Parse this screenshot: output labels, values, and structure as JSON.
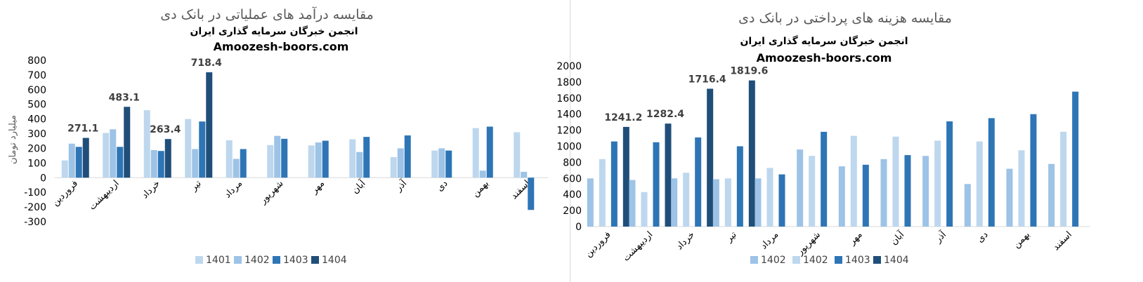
{
  "chart_data": [
    {
      "type": "bar",
      "title": "مقایسه درآمد های عملیاتی در بانک دی",
      "subtitle_lines": [
        "انجمن خبرگان سرمایه گذاری ایران",
        "Amoozesh-boors.com"
      ],
      "ylabel": "میلیارد تومان",
      "ylim": [
        -300,
        800
      ],
      "yticks": [
        -300,
        -200,
        -100,
        0,
        100,
        200,
        300,
        400,
        500,
        600,
        700,
        800
      ],
      "grid": false,
      "legend_position": "bottom",
      "categories": [
        "فروردین",
        "اردیبهشت",
        "خرداد",
        "تیر",
        "مرداد",
        "شهریور",
        "مهر",
        "آبان",
        "آذر",
        "دی",
        "بهمن",
        "اسفند"
      ],
      "series": [
        {
          "name": "1401",
          "color": "#bdd7ee",
          "values": [
            118,
            305,
            460,
            400,
            255,
            222,
            220,
            262,
            140,
            185,
            338,
            310
          ]
        },
        {
          "name": "1402",
          "color": "#9dc3e6",
          "values": [
            232,
            330,
            188,
            195,
            128,
            285,
            240,
            175,
            200,
            200,
            48,
            40
          ]
        },
        {
          "name": "1403",
          "color": "#2e75b6",
          "values": [
            210,
            210,
            182,
            383,
            195,
            265,
            252,
            278,
            288,
            185,
            348,
            -220
          ]
        },
        {
          "name": "1404",
          "color": "#1f4e79",
          "values": [
            271.1,
            483.1,
            263.4,
            718.4,
            null,
            null,
            null,
            null,
            null,
            null,
            null,
            null
          ]
        }
      ],
      "data_labels": [
        {
          "series": "1404",
          "category": "فروردین",
          "text": "271.1"
        },
        {
          "series": "1404",
          "category": "اردیبهشت",
          "text": "483.1"
        },
        {
          "series": "1404",
          "category": "خرداد",
          "text": "263.4"
        },
        {
          "series": "1404",
          "category": "تیر",
          "text": "718.4"
        }
      ]
    },
    {
      "type": "bar",
      "title": "مقایسه هزینه های پرداختی در بانک دی",
      "subtitle_lines": [
        "انجمن خبرگان سرمایه گذاری ایران",
        "Amoozesh-boors.com"
      ],
      "ylabel": "",
      "ylim": [
        0,
        2000
      ],
      "yticks": [
        0,
        200,
        400,
        600,
        800,
        1000,
        1200,
        1400,
        1600,
        1800,
        2000
      ],
      "grid": false,
      "legend_position": "bottom",
      "categories": [
        "فروردین",
        "اردیبهشت",
        "خرداد",
        "تیر",
        "مرداد",
        "شهریور",
        "مهر",
        "آبان",
        "آذر",
        "دی",
        "بهمن",
        "اسفند"
      ],
      "series": [
        {
          "name": "1402",
          "color": "#9dc3e6",
          "values": [
            600,
            580,
            600,
            590,
            600,
            960,
            750,
            840,
            880,
            530,
            720,
            780
          ]
        },
        {
          "name": "1402",
          "color": "#bdd7ee",
          "values": [
            840,
            430,
            670,
            600,
            730,
            880,
            1130,
            1120,
            1070,
            1060,
            950,
            1180
          ]
        },
        {
          "name": "1403",
          "color": "#2e75b6",
          "values": [
            1060,
            1050,
            1110,
            1000,
            650,
            1180,
            770,
            890,
            1310,
            1350,
            1400,
            1680
          ]
        },
        {
          "name": "1404",
          "color": "#1f4e79",
          "values": [
            1241.2,
            1282.4,
            1716.4,
            1819.6,
            null,
            null,
            null,
            null,
            null,
            null,
            null,
            null
          ]
        }
      ],
      "data_labels": [
        {
          "series": "1404",
          "category": "فروردین",
          "text": "1241.2"
        },
        {
          "series": "1404",
          "category": "اردیبهشت",
          "text": "1282.4"
        },
        {
          "series": "1404",
          "category": "خرداد",
          "text": "1716.4"
        },
        {
          "series": "1404",
          "category": "تیر",
          "text": "1819.6"
        }
      ]
    }
  ]
}
